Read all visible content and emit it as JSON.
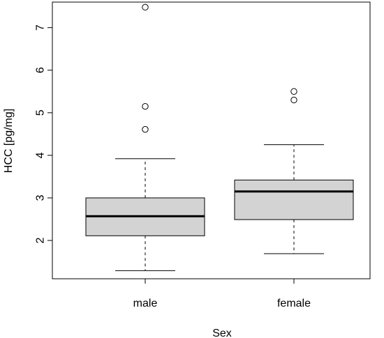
{
  "chart_data": {
    "type": "boxplot",
    "xlabel": "Sex",
    "ylabel": "HCC [pg/mg]",
    "categories": [
      "male",
      "female"
    ],
    "ylim": [
      1.1,
      7.6
    ],
    "yticks": [
      2,
      3,
      4,
      5,
      6,
      7
    ],
    "grid": false,
    "box_fill": "#d3d3d3",
    "boxes": [
      {
        "name": "male",
        "whisker_low": 1.29,
        "q1": 2.11,
        "median": 2.57,
        "q3": 3.0,
        "whisker_high": 3.92,
        "outliers": [
          4.61,
          5.15,
          7.48
        ]
      },
      {
        "name": "female",
        "whisker_low": 1.69,
        "q1": 2.49,
        "median": 3.15,
        "q3": 3.42,
        "whisker_high": 4.25,
        "outliers": [
          5.3,
          5.5
        ]
      }
    ]
  }
}
